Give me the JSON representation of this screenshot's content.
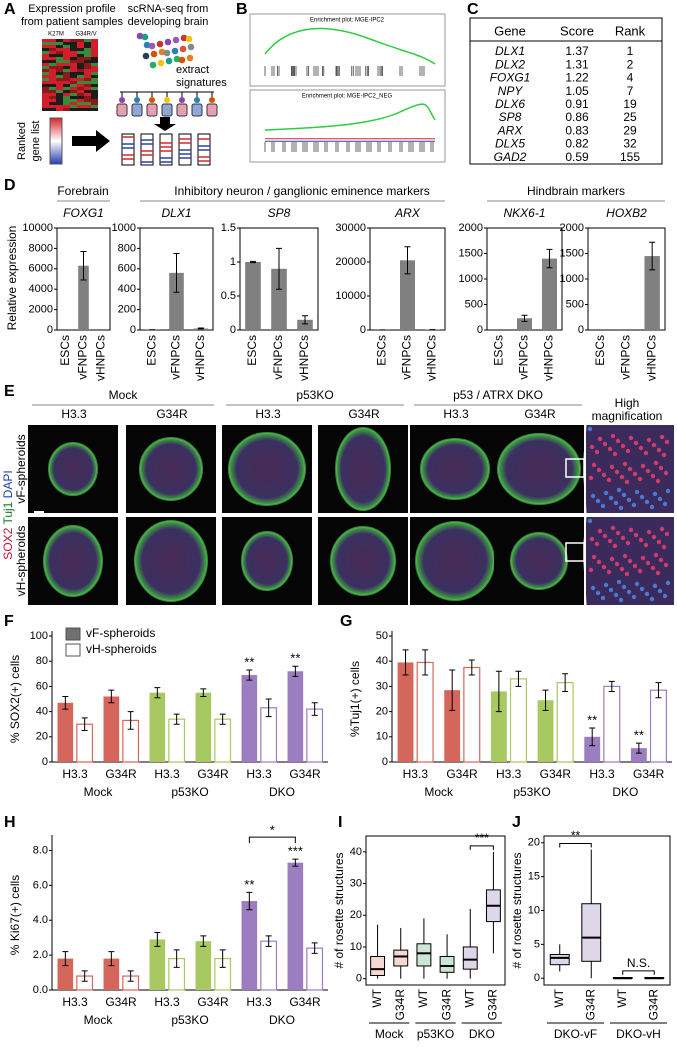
{
  "panel_labels": [
    "A",
    "B",
    "C",
    "D",
    "E",
    "F",
    "G",
    "H",
    "I",
    "J"
  ],
  "panel_a": {
    "left_title": [
      "Expression profile",
      "from patient samples"
    ],
    "column_labels": [
      "K27M",
      "G34R/V"
    ],
    "right_title": [
      "scRNA-seq  from",
      "developing brain"
    ],
    "extract": [
      "extract",
      "signatures"
    ],
    "ranked": [
      "Ranked",
      "gene list"
    ]
  },
  "panel_b": {
    "plots": [
      "Enrichment plot: MGE-IPC2",
      "Enrichment plot: MGE-IPC2_NEG"
    ]
  },
  "table": {
    "header": [
      "Gene",
      "Score",
      "Rank"
    ],
    "rows": [
      [
        "DLX1",
        1.37,
        1
      ],
      [
        "DLX2",
        1.31,
        2
      ],
      [
        "FOXG1",
        1.22,
        4
      ],
      [
        "NPY",
        1.05,
        7
      ],
      [
        "DLX6",
        0.91,
        19
      ],
      [
        "SP8",
        0.86,
        25
      ],
      [
        "ARX",
        0.83,
        29
      ],
      [
        "DLX5",
        0.82,
        32
      ],
      [
        "GAD2",
        0.59,
        155
      ]
    ]
  },
  "panel_d": {
    "ylabel": "Relative expression",
    "groups": [
      "Forebrain",
      "Inhibitory neuron / ganglionic eminence markers",
      "Hindbrain markers"
    ]
  },
  "panel_e": {
    "groups": [
      "Mock",
      "p53KO",
      "p53 / ATRX DKO"
    ],
    "columns": [
      "H3.3",
      "G34R",
      "H3.3",
      "G34R",
      "H3.3",
      "G34R"
    ],
    "high_magnification": [
      "High",
      "magnification"
    ],
    "rows": [
      "vF-spheroids",
      "vH-spheroids"
    ],
    "stain": [
      {
        "text": "SOX2",
        "color": "#c0143c"
      },
      {
        "text": " Tuj1",
        "color": "#1a7a2a"
      },
      {
        "text": " DAPI",
        "color": "#1f3fa8"
      }
    ]
  },
  "chart_data": [
    {
      "type": "bar",
      "title": "FOXG1",
      "categories": [
        "ESCs",
        "vFNPCs",
        "vHNPCs"
      ],
      "values": [
        5,
        6300,
        5
      ],
      "errors": [
        0,
        1400,
        0
      ],
      "color": "#808080",
      "ylim": [
        0,
        10000
      ],
      "yticks": [
        0,
        2000,
        4000,
        6000,
        8000,
        10000
      ]
    },
    {
      "type": "bar",
      "title": "DLX1",
      "categories": [
        "ESCs",
        "vFNPCs",
        "vHNPCs"
      ],
      "values": [
        2,
        560,
        15
      ],
      "errors": [
        0,
        190,
        5
      ],
      "color": "#808080",
      "ylim": [
        0,
        1000
      ],
      "yticks": [
        0,
        200,
        400,
        600,
        800,
        1000
      ]
    },
    {
      "type": "bar",
      "title": "SP8",
      "categories": [
        "ESCs",
        "vFNPCs",
        "vHNPCs"
      ],
      "values": [
        1,
        0.9,
        0.15
      ],
      "errors": [
        0.01,
        0.3,
        0.06
      ],
      "color": "#808080",
      "ylim": [
        0,
        1.5
      ],
      "yticks": [
        0,
        0.5,
        1,
        1.5
      ]
    },
    {
      "type": "bar",
      "title": "ARX",
      "categories": [
        "ESCs",
        "vFNPCs",
        "vHNPCs"
      ],
      "values": [
        50,
        20500,
        100
      ],
      "errors": [
        0,
        4000,
        0
      ],
      "color": "#808080",
      "ylim": [
        0,
        30000
      ],
      "yticks": [
        0,
        10000,
        20000,
        30000
      ]
    },
    {
      "type": "bar",
      "title": "NKX6-1",
      "categories": [
        "ESCs",
        "vFNPCs",
        "vHNPCs"
      ],
      "values": [
        0,
        230,
        1400
      ],
      "errors": [
        0,
        60,
        180
      ],
      "color": "#808080",
      "ylim": [
        0,
        2000
      ],
      "yticks": [
        0,
        500,
        1000,
        1500,
        2000
      ]
    },
    {
      "type": "bar",
      "title": "HOXB2",
      "categories": [
        "ESCs",
        "vFNPCs",
        "vHNPCs"
      ],
      "values": [
        0,
        0,
        1450
      ],
      "errors": [
        0,
        0,
        270
      ],
      "color": "#808080",
      "ylim": [
        0,
        2000
      ],
      "yticks": [
        0,
        500,
        1000,
        1500,
        2000
      ]
    },
    {
      "type": "grouped_bar",
      "ylabel": "% SOX2(+) cells",
      "categories": [
        "H3.3",
        "G34R",
        "H3.3",
        "G34R",
        "H3.3",
        "G34R"
      ],
      "groups": [
        "Mock",
        "p53KO",
        "DKO"
      ],
      "group_colors": [
        "#d4665c",
        "#a8c862",
        "#9b7dc0"
      ],
      "legend": "upper left",
      "ylim": [
        0,
        100
      ],
      "yticks": [
        0,
        20,
        40,
        60,
        80,
        100
      ],
      "series": [
        {
          "name": "vF-spheroids",
          "color": "#707070",
          "filled": true,
          "values": [
            47,
            52,
            55,
            55,
            69,
            72
          ],
          "errors": [
            5,
            5,
            4,
            3,
            4,
            4
          ],
          "labels": [
            null,
            null,
            null,
            null,
            "**",
            "**"
          ]
        },
        {
          "name": "vH-spheroids",
          "color": "#ffffff",
          "filled": false,
          "values": [
            30,
            33,
            34,
            34,
            43,
            42
          ],
          "errors": [
            5,
            7,
            4,
            4,
            7,
            5
          ]
        }
      ]
    },
    {
      "type": "grouped_bar",
      "ylabel": "%Tuj1(+) cells",
      "categories": [
        "H3.3",
        "G34R",
        "H3.3",
        "G34R",
        "H3.3",
        "G34R"
      ],
      "groups": [
        "Mock",
        "p53KO",
        "DKO"
      ],
      "group_colors": [
        "#d4665c",
        "#a8c862",
        "#9b7dc0"
      ],
      "ylim": [
        0,
        50
      ],
      "yticks": [
        0,
        10,
        20,
        30,
        40,
        50
      ],
      "series": [
        {
          "name": "vF-spheroids",
          "color": "#707070",
          "filled": true,
          "values": [
            39.5,
            28.5,
            28,
            24.5,
            10,
            5.5
          ],
          "errors": [
            5,
            8,
            8,
            4,
            3.5,
            2
          ],
          "labels": [
            null,
            null,
            null,
            null,
            "**",
            "**"
          ]
        },
        {
          "name": "vH-spheroids",
          "color": "#ffffff",
          "filled": false,
          "values": [
            39.5,
            37.5,
            33,
            31.5,
            30,
            28.5
          ],
          "errors": [
            5,
            3,
            3,
            3.5,
            2,
            3
          ]
        }
      ]
    },
    {
      "type": "grouped_bar",
      "ylabel": "% Ki67(+) cells",
      "categories": [
        "H3.3",
        "G34R",
        "H3.3",
        "G34R",
        "H3.3",
        "G34R"
      ],
      "groups": [
        "Mock",
        "p53KO",
        "DKO"
      ],
      "group_colors": [
        "#d4665c",
        "#a8c862",
        "#9b7dc0"
      ],
      "ylim": [
        0,
        8.6
      ],
      "yticks": [
        {
          "value": 0,
          "label": "0.0"
        },
        {
          "value": 2,
          "label": "2.0"
        },
        {
          "value": 4,
          "label": "4.0"
        },
        {
          "value": 6,
          "label": "6.0"
        },
        {
          "value": 8,
          "label": "8.0"
        }
      ],
      "bracket_labels": [
        null,
        null,
        "*"
      ],
      "series": [
        {
          "name": "vF-spheroids",
          "color": "#707070",
          "filled": true,
          "values": [
            1.8,
            1.8,
            2.9,
            2.8,
            5.1,
            7.3
          ],
          "errors": [
            0.4,
            0.4,
            0.4,
            0.3,
            0.5,
            0.2
          ],
          "labels": [
            null,
            null,
            null,
            null,
            "**",
            "***"
          ]
        },
        {
          "name": "vH-spheroids",
          "color": "#ffffff",
          "filled": false,
          "values": [
            0.8,
            0.8,
            1.8,
            1.8,
            2.8,
            2.4
          ],
          "errors": [
            0.3,
            0.3,
            0.5,
            0.5,
            0.3,
            0.3
          ]
        }
      ]
    },
    {
      "type": "box",
      "ylabel": "# of rosette structures",
      "categories": [
        "WT",
        "G34R",
        "WT",
        "G34R",
        "WT",
        "G34R"
      ],
      "groups": [
        "Mock",
        "p53KO",
        "DKO"
      ],
      "group_colors": [
        "#d9604f",
        "#2f9e55",
        "#7b5aa6"
      ],
      "ylim": [
        -2,
        45
      ],
      "yticks": [
        0,
        10,
        20,
        30,
        40
      ],
      "bracket_labels": [
        null,
        null,
        "***"
      ],
      "min": [
        0,
        0,
        0,
        0,
        0,
        8
      ],
      "q1": [
        1,
        4,
        4,
        2,
        3,
        18
      ],
      "median": [
        3,
        7,
        8,
        4,
        6,
        23
      ],
      "q3": [
        7,
        9,
        11,
        7,
        10,
        28
      ],
      "max": [
        17,
        16,
        19,
        14,
        22,
        40
      ]
    },
    {
      "type": "box",
      "ylabel": "# of rosette structures",
      "categories": [
        "WT",
        "G34R",
        "WT",
        "G34R"
      ],
      "groups": [
        "DKO-vF",
        "DKO-vH"
      ],
      "group_colors": [
        "#7b5aa6",
        "#2fb7b0"
      ],
      "ylim": [
        -1,
        21
      ],
      "yticks": [
        0,
        5,
        10,
        15,
        20
      ],
      "bracket_labels": [
        "**",
        "N.S."
      ],
      "min": [
        1,
        0,
        0,
        0
      ],
      "q1": [
        2,
        2.5,
        0,
        0
      ],
      "median": [
        3,
        6,
        0,
        0
      ],
      "q3": [
        3.5,
        11,
        0.1,
        0.1
      ],
      "max": [
        5,
        19,
        0.2,
        0.2
      ]
    }
  ]
}
